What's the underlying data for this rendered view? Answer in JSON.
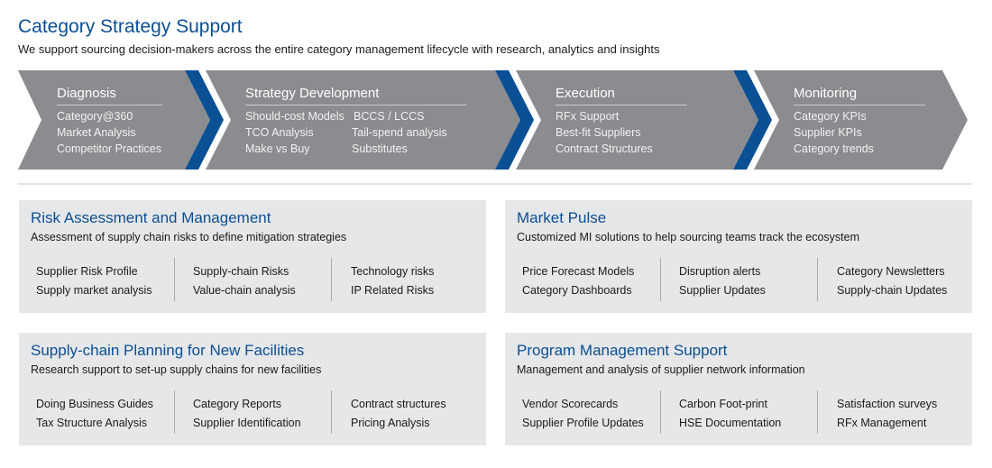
{
  "header": {
    "title": "Category Strategy Support",
    "subtitle": "We support sourcing decision-makers across the entire category management lifecycle with research, analytics and insights"
  },
  "colors": {
    "brand_blue": "#0b4f94",
    "chevron_gray": "#8a8c8f",
    "panel_gray": "#e6e7e8"
  },
  "stages": [
    {
      "name": "Diagnosis",
      "items": [
        "Category@360",
        "Market Analysis",
        "Competitor Practices"
      ]
    },
    {
      "name": "Strategy Development",
      "items": [
        "Should-cost Models",
        "BCCS / LCCS",
        "TCO Analysis",
        "Tail-spend analysis",
        "Make vs Buy",
        "Substitutes"
      ]
    },
    {
      "name": "Execution",
      "items": [
        "RFx Support",
        "Best-fit Suppliers",
        "Contract Structures"
      ]
    },
    {
      "name": "Monitoring",
      "items": [
        "Category KPIs",
        "Supplier KPIs",
        "Category trends"
      ]
    }
  ],
  "panels": [
    {
      "title": "Risk Assessment and Management",
      "desc": "Assessment of supply chain risks to define mitigation strategies",
      "columns": [
        [
          "Supplier Risk Profile",
          "Supply market analysis"
        ],
        [
          "Supply-chain Risks",
          "Value-chain analysis"
        ],
        [
          "Technology risks",
          "IP Related Risks"
        ]
      ]
    },
    {
      "title": "Market Pulse",
      "desc": "Customized MI solutions to help sourcing teams track the ecosystem",
      "columns": [
        [
          "Price Forecast Models",
          "Category Dashboards"
        ],
        [
          "Disruption alerts",
          "Supplier Updates"
        ],
        [
          "Category Newsletters",
          "Supply-chain Updates"
        ]
      ]
    },
    {
      "title": "Supply-chain Planning for New Facilities",
      "desc": "Research support to set-up supply chains for new facilities",
      "columns": [
        [
          "Doing Business Guides",
          "Tax Structure Analysis"
        ],
        [
          "Category Reports",
          "Supplier Identification"
        ],
        [
          "Contract structures",
          "Pricing Analysis"
        ]
      ]
    },
    {
      "title": "Program Management Support",
      "desc": "Management and analysis of supplier network information",
      "columns": [
        [
          "Vendor Scorecards",
          "Supplier Profile Updates"
        ],
        [
          "Carbon Foot-print",
          "HSE Documentation"
        ],
        [
          "Satisfaction surveys",
          "RFx Management"
        ]
      ]
    }
  ]
}
